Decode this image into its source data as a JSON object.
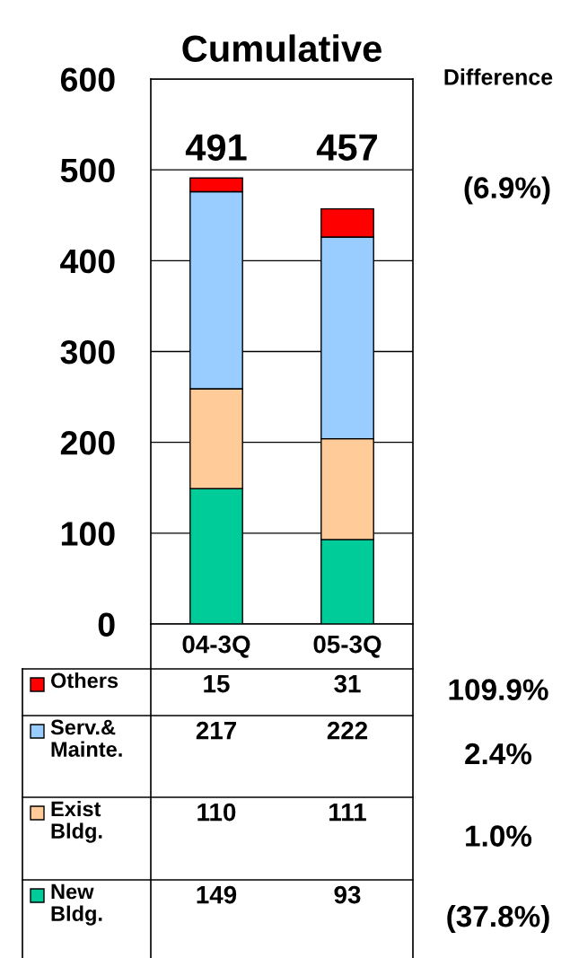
{
  "chart_data": {
    "type": "bar",
    "stacked": true,
    "title": "Cumulative",
    "categories": [
      "04-3Q",
      "05-3Q"
    ],
    "series": [
      {
        "name": "New\nBldg.",
        "color": "#00cc99",
        "values": [
          149,
          93
        ]
      },
      {
        "name": "Exist\nBldg.",
        "color": "#ffcc99",
        "values": [
          110,
          111
        ]
      },
      {
        "name": "Serv.&\nMainte.",
        "color": "#99ccff",
        "values": [
          217,
          222
        ]
      },
      {
        "name": "Others",
        "color": "#ff0000",
        "values": [
          15,
          31
        ]
      }
    ],
    "totals": [
      "491",
      "457"
    ],
    "ylim": [
      0,
      600
    ],
    "yticks": [
      0,
      100,
      200,
      300,
      400,
      500,
      600
    ],
    "grid": "y",
    "data_labels": true,
    "legend": "bottom",
    "annotations": [
      "Difference",
      "(6.9%)",
      "109.9%",
      "2.4%",
      "1.0%",
      "(37.8%)"
    ]
  }
}
